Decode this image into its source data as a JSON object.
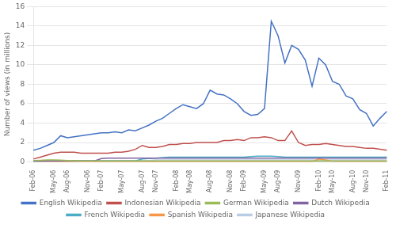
{
  "chart_data": {
    "type": "line",
    "categories": [
      "Feb-06",
      null,
      null,
      "May-06",
      null,
      "Aug-06",
      null,
      null,
      "Nov-06",
      null,
      "Feb-07",
      null,
      null,
      "May-07",
      null,
      null,
      "Aug-07",
      null,
      "Nov-07",
      null,
      null,
      "Feb-08",
      null,
      "May-08",
      null,
      null,
      "Aug-08",
      null,
      null,
      "Nov-08",
      null,
      "Feb-09",
      null,
      null,
      "May-09",
      null,
      "Aug-09",
      null,
      null,
      "Nov-09",
      null,
      null,
      "Feb-10",
      null,
      "May-10",
      null,
      null,
      "Aug-10",
      null,
      "Nov-10",
      null,
      null,
      "Feb-11"
    ],
    "series": [
      {
        "name": "English Wikipedia",
        "color": "#4472C4",
        "values": [
          1.2,
          1.4,
          1.7,
          2.0,
          2.7,
          2.5,
          2.6,
          2.7,
          2.8,
          2.9,
          3.0,
          3.0,
          3.1,
          3.0,
          3.3,
          3.2,
          3.5,
          3.8,
          4.2,
          4.5,
          5.0,
          5.5,
          5.9,
          5.7,
          5.5,
          6.0,
          7.4,
          7.0,
          6.9,
          6.5,
          6.0,
          5.2,
          4.8,
          4.9,
          5.5,
          14.5,
          13.0,
          10.2,
          12.0,
          11.6,
          10.5,
          7.8,
          10.7,
          10.0,
          8.3,
          8.0,
          6.8,
          6.5,
          5.4,
          5.0,
          3.7,
          4.5,
          5.2
        ]
      },
      {
        "name": "Indonesian Wikipedia",
        "color": "#C0504D",
        "values": [
          0.3,
          0.5,
          0.7,
          0.9,
          1.0,
          1.0,
          1.0,
          0.9,
          0.9,
          0.9,
          0.9,
          0.9,
          1.0,
          1.0,
          1.1,
          1.3,
          1.7,
          1.5,
          1.5,
          1.6,
          1.8,
          1.8,
          1.9,
          1.9,
          2.0,
          2.0,
          2.0,
          2.0,
          2.2,
          2.2,
          2.3,
          2.2,
          2.5,
          2.5,
          2.6,
          2.5,
          2.2,
          2.2,
          3.2,
          2.0,
          1.7,
          1.8,
          1.8,
          1.9,
          1.8,
          1.7,
          1.6,
          1.6,
          1.5,
          1.4,
          1.4,
          1.3,
          1.2
        ]
      },
      {
        "name": "German Wikipedia",
        "color": "#9BBB59",
        "values": [
          0.15,
          0.17,
          0.2,
          0.2,
          0.18,
          0.15,
          0.12,
          0.1,
          0.1,
          0.1,
          0.1,
          0.1,
          0.1,
          0.1,
          0.1,
          0.1,
          0.1,
          0.1,
          0.1,
          0.1,
          0.1,
          0.1,
          0.1,
          0.1,
          0.1,
          0.1,
          0.1,
          0.1,
          0.1,
          0.1,
          0.1,
          0.1,
          0.1,
          0.1,
          0.1,
          0.1,
          0.1,
          0.1,
          0.1,
          0.1,
          0.1,
          0.1,
          0.1,
          0.1,
          0.1,
          0.1,
          0.1,
          0.1,
          0.1,
          0.1,
          0.1,
          0.1,
          0.1
        ]
      },
      {
        "name": "Dutch Wikipedia",
        "color": "#8064A2",
        "values": [
          0.1,
          0.1,
          0.1,
          0.1,
          0.1,
          0.1,
          0.1,
          0.1,
          0.1,
          0.1,
          0.35,
          0.4,
          0.4,
          0.4,
          0.4,
          0.4,
          0.4,
          0.4,
          0.4,
          0.4,
          0.4,
          0.4,
          0.4,
          0.4,
          0.4,
          0.4,
          0.4,
          0.4,
          0.4,
          0.4,
          0.4,
          0.4,
          0.4,
          0.4,
          0.4,
          0.4,
          0.4,
          0.4,
          0.4,
          0.4,
          0.4,
          0.4,
          0.4,
          0.4,
          0.4,
          0.4,
          0.4,
          0.4,
          0.4,
          0.4,
          0.4,
          0.4,
          0.4
        ]
      },
      {
        "name": "French Wikipedia",
        "color": "#4BACC6",
        "values": [
          0.05,
          0.07,
          0.1,
          0.1,
          0.1,
          0.1,
          0.1,
          0.1,
          0.1,
          0.1,
          0.1,
          0.1,
          0.1,
          0.1,
          0.1,
          0.1,
          0.3,
          0.35,
          0.4,
          0.45,
          0.5,
          0.5,
          0.5,
          0.5,
          0.5,
          0.5,
          0.5,
          0.5,
          0.5,
          0.5,
          0.5,
          0.5,
          0.55,
          0.6,
          0.6,
          0.6,
          0.55,
          0.5,
          0.5,
          0.5,
          0.5,
          0.5,
          0.5,
          0.5,
          0.5,
          0.5,
          0.5,
          0.5,
          0.5,
          0.5,
          0.5,
          0.5,
          0.5
        ]
      },
      {
        "name": "Spanish Wikipedia",
        "color": "#F79646",
        "values": [
          0.0,
          0.0,
          0.0,
          0.0,
          0.0,
          0.0,
          0.0,
          0.0,
          0.0,
          0.0,
          0.0,
          0.0,
          0.0,
          0.0,
          0.0,
          0.0,
          0.0,
          0.0,
          0.0,
          0.0,
          0.0,
          0.0,
          0.0,
          0.0,
          0.0,
          0.0,
          0.0,
          0.0,
          0.0,
          0.0,
          0.0,
          0.0,
          0.0,
          0.0,
          0.0,
          0.0,
          0.0,
          0.0,
          0.0,
          0.0,
          0.0,
          0.0,
          0.3,
          0.2,
          0.05,
          0.05,
          0.05,
          0.05,
          0.05,
          0.05,
          0.05,
          0.05,
          0.05
        ]
      },
      {
        "name": "Japanese Wikipedia",
        "color": "#B8CCE4",
        "values": [
          0.15,
          0.15,
          0.15,
          0.15,
          0.15,
          0.15,
          0.15,
          0.15,
          0.15,
          0.15,
          0.15,
          0.15,
          0.15,
          0.15,
          0.15,
          0.15,
          0.15,
          0.15,
          0.2,
          0.2,
          0.2,
          0.2,
          0.2,
          0.2,
          0.2,
          0.2,
          0.2,
          0.2,
          0.2,
          0.2,
          0.2,
          0.2,
          0.2,
          0.2,
          0.2,
          0.2,
          0.2,
          0.2,
          0.2,
          0.2,
          0.2,
          0.2,
          0.2,
          0.2,
          0.2,
          0.2,
          0.2,
          0.2,
          0.2,
          0.2,
          0.2,
          0.2,
          0.2
        ]
      }
    ],
    "ylabel": "Number of views (in millions)",
    "ylim": [
      0,
      16
    ],
    "yticks": [
      0,
      2,
      4,
      6,
      8,
      10,
      12,
      14,
      16
    ],
    "grid": true,
    "legend": "bottom"
  }
}
